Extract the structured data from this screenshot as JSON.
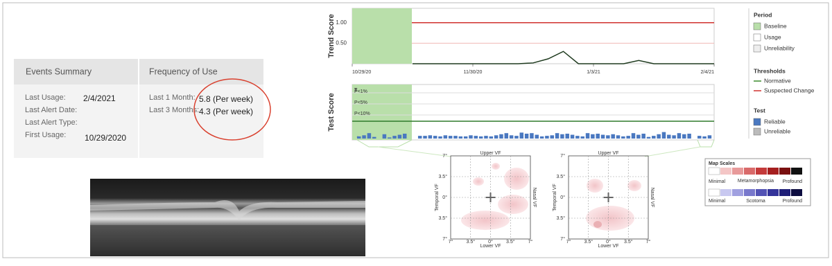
{
  "events_summary": {
    "header": {
      "left": "Events Summary",
      "right": "Frequency of Use"
    },
    "rows": [
      {
        "label": "Last Usage:",
        "value": "2/4/2021"
      },
      {
        "label": "Last Alert Date:"
      },
      {
        "label": "Last Alert Type:"
      },
      {
        "label": "First Usage:",
        "value": "10/29/2020"
      }
    ],
    "frequency": [
      {
        "label": "Last 1 Month:",
        "value": "5.8 (Per week)"
      },
      {
        "label": "Last 3 Months:",
        "value": "4.3 (Per week)"
      }
    ]
  },
  "trend_chart": {
    "y_label": "Trend Score",
    "ylim": [
      0,
      1.35
    ],
    "yticks": [
      {
        "value": 1,
        "label": "1.00"
      },
      {
        "value": 0.5,
        "label": "0.50"
      }
    ],
    "x_labels": [
      "10/29/20",
      "11/30/20",
      "1/3/21",
      "2/4/21"
    ],
    "values": [
      null,
      null,
      null,
      null,
      0,
      0,
      0,
      0,
      0,
      0,
      0,
      0,
      0.02,
      0.12,
      0.3,
      0,
      0,
      0,
      0,
      0.08,
      0,
      0,
      0,
      0,
      0
    ],
    "color": "#1e3a1e",
    "threshold_color": "#d0312d"
  },
  "test_chart": {
    "y_label": "Test Score",
    "marker": "T",
    "levels": [
      "P<1%",
      "P<5%",
      "P<10%"
    ],
    "ylim": [
      0,
      100
    ],
    "color": "#4a78c0",
    "values": [
      4,
      6,
      10,
      3,
      0,
      8,
      2,
      5,
      7,
      9,
      0,
      0,
      5,
      5,
      6,
      5,
      4,
      6,
      5,
      5,
      4,
      4,
      6,
      5,
      4,
      5,
      4,
      6,
      8,
      10,
      6,
      5,
      11,
      9,
      10,
      7,
      4,
      5,
      6,
      10,
      8,
      9,
      7,
      5,
      4,
      10,
      8,
      9,
      7,
      6,
      8,
      6,
      4,
      5,
      10,
      7,
      9,
      3,
      5,
      8,
      12,
      7,
      6,
      10,
      8,
      9,
      0,
      5,
      4,
      6
    ]
  },
  "legend": {
    "period": {
      "title": "Period",
      "items": [
        "Baseline",
        "Usage",
        "Unreliability"
      ]
    },
    "thresholds": {
      "title": "Thresholds",
      "items": [
        "Normative",
        "Suspected Change"
      ]
    },
    "test": {
      "title": "Test",
      "items": [
        "Reliable",
        "Unreliable"
      ]
    }
  },
  "maps": [
    {
      "upper": "Upper VF",
      "lower": "Lower VF",
      "temporal": "Temporal VF",
      "nasal": "Nasal VF",
      "yticks": [
        "7°",
        "3.5°",
        "0°",
        "3.5°",
        "7°"
      ],
      "xticks": [
        "7°",
        "3.5°",
        "0°",
        "3.5°",
        "7°"
      ]
    },
    {
      "upper": "Upper VF",
      "lower": "Lower VF",
      "temporal": "Temporal VF",
      "nasal": "Nasal VF",
      "yticks": [
        "7°",
        "3.5°",
        "0°",
        "3.5°",
        "7°"
      ],
      "xticks": [
        "7°",
        "3.5°",
        "0°",
        "3.5°",
        "7°"
      ]
    }
  ],
  "map_scales": {
    "title": "Map Scales",
    "metamorphopsia": {
      "min": "Minimal",
      "name": "Metamorphopsia",
      "max": "Profound"
    },
    "scotoma": {
      "min": "Minimal",
      "name": "Scotoma",
      "max": "Profound"
    }
  }
}
